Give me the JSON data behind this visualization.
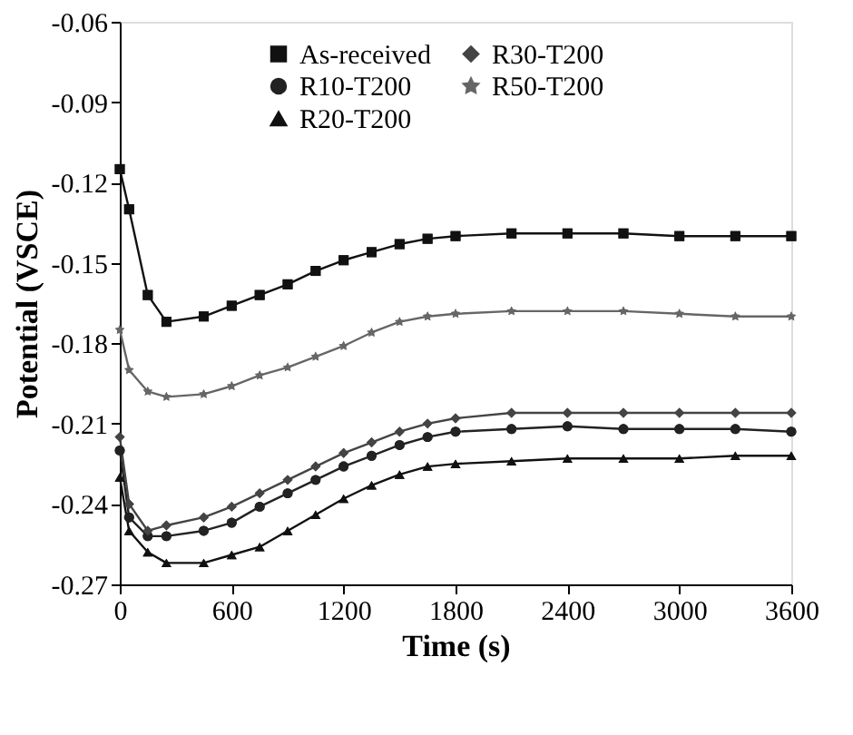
{
  "chart_data": {
    "type": "line",
    "xlabel": "Time (s)",
    "ylabel": "Potential (VSCE)",
    "x": [
      0,
      50,
      150,
      250,
      450,
      600,
      750,
      900,
      1050,
      1200,
      1350,
      1500,
      1650,
      1800,
      2100,
      2400,
      2700,
      3000,
      3300,
      3600
    ],
    "series": [
      {
        "name": "As-received",
        "color": "#111111",
        "marker": "square",
        "values": [
          -0.115,
          -0.13,
          -0.162,
          -0.172,
          -0.17,
          -0.166,
          -0.162,
          -0.158,
          -0.153,
          -0.149,
          -0.146,
          -0.143,
          -0.141,
          -0.14,
          -0.139,
          -0.139,
          -0.139,
          -0.14,
          -0.14,
          -0.14
        ]
      },
      {
        "name": "R10-T200",
        "color": "#222222",
        "marker": "circle",
        "values": [
          -0.22,
          -0.245,
          -0.252,
          -0.252,
          -0.25,
          -0.247,
          -0.241,
          -0.236,
          -0.231,
          -0.226,
          -0.222,
          -0.218,
          -0.215,
          -0.213,
          -0.212,
          -0.211,
          -0.212,
          -0.212,
          -0.212,
          -0.213
        ]
      },
      {
        "name": "R20-T200",
        "color": "#111111",
        "marker": "triangle",
        "values": [
          -0.23,
          -0.25,
          -0.258,
          -0.262,
          -0.262,
          -0.259,
          -0.256,
          -0.25,
          -0.244,
          -0.238,
          -0.233,
          -0.229,
          -0.226,
          -0.225,
          -0.224,
          -0.223,
          -0.223,
          -0.223,
          -0.222,
          -0.222
        ]
      },
      {
        "name": "R30-T200",
        "color": "#444444",
        "marker": "diamond",
        "values": [
          -0.215,
          -0.24,
          -0.25,
          -0.248,
          -0.245,
          -0.241,
          -0.236,
          -0.231,
          -0.226,
          -0.221,
          -0.217,
          -0.213,
          -0.21,
          -0.208,
          -0.206,
          -0.206,
          -0.206,
          -0.206,
          -0.206,
          -0.206
        ]
      },
      {
        "name": "R50-T200",
        "color": "#666666",
        "marker": "star",
        "values": [
          -0.175,
          -0.19,
          -0.198,
          -0.2,
          -0.199,
          -0.196,
          -0.192,
          -0.189,
          -0.185,
          -0.181,
          -0.176,
          -0.172,
          -0.17,
          -0.169,
          -0.168,
          -0.168,
          -0.168,
          -0.169,
          -0.17,
          -0.17
        ]
      }
    ],
    "xlim": [
      0,
      3600
    ],
    "xticks": [
      0,
      600,
      1200,
      1800,
      2400,
      3000,
      3600
    ],
    "ylim": [
      -0.27,
      -0.06
    ],
    "yticks": [
      -0.27,
      -0.24,
      -0.21,
      -0.18,
      -0.15,
      -0.12,
      -0.09,
      -0.06
    ],
    "grid": false,
    "legend": "top",
    "line_style": "solid"
  }
}
